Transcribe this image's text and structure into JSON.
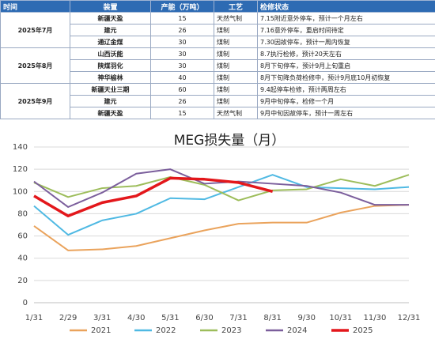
{
  "table": {
    "header": [
      "时间",
      "装置",
      "产能（万吨）",
      "工艺",
      "检修状态"
    ],
    "groups": [
      {
        "period": "2025年7月",
        "rows": [
          [
            "新疆天盈",
            15,
            "天然气制",
            "7.15附近意外停车，预计一个月左右"
          ],
          [
            "建元",
            26,
            "煤制",
            "7.16意外停车，重启时间待定"
          ],
          [
            "通辽金煤",
            30,
            "煤制",
            "7.30因故停车，预计一周内恢复"
          ]
        ]
      },
      {
        "period": "2025年8月",
        "rows": [
          [
            "山西沃能",
            30,
            "煤制",
            "8.7执行检修，预计20天左右"
          ],
          [
            "陕煤羽化",
            30,
            "煤制",
            "8月下旬停车，预计9月上旬重启"
          ],
          [
            "神华榆林",
            40,
            "煤制",
            "8月下旬降负荷检修中，预计9月底10月初恢复"
          ]
        ]
      },
      {
        "period": "2025年9月",
        "rows": [
          [
            "新疆天业三期",
            60,
            "煤制",
            "9.4起停车检修，预计两周左右"
          ],
          [
            "建元",
            26,
            "煤制",
            "9月中旬停车，检修一个月"
          ],
          [
            "新疆天盈",
            15,
            "天然气制",
            "9月中旬因故停车，预计一周左右"
          ]
        ]
      }
    ]
  },
  "chart_data": {
    "type": "line",
    "title": "MEG损失量（月）",
    "categories": [
      "1/31",
      "2/29",
      "3/31",
      "4/30",
      "5/31",
      "6/30",
      "7/31",
      "8/31",
      "9/30",
      "10/31",
      "11/30",
      "12/31"
    ],
    "series": [
      {
        "name": "2021",
        "color": "#eaa35c",
        "values": [
          69,
          47,
          48,
          51,
          58,
          65,
          71,
          72,
          72,
          81,
          87,
          88
        ]
      },
      {
        "name": "2022",
        "color": "#4fb9e3",
        "values": [
          87,
          61,
          74,
          80,
          94,
          93,
          104,
          115,
          104,
          103,
          102,
          104
        ]
      },
      {
        "name": "2023",
        "color": "#9dbd5b",
        "values": [
          108,
          95,
          103,
          105,
          113,
          106,
          92,
          101,
          102,
          111,
          105,
          115
        ]
      },
      {
        "name": "2024",
        "color": "#7b5e9c",
        "values": [
          109,
          86,
          99,
          116,
          120,
          107,
          109,
          107,
          105,
          99,
          88,
          88
        ]
      },
      {
        "name": "2025",
        "color": "#e3171b",
        "values": [
          96,
          78,
          90,
          96,
          112,
          111,
          108,
          100,
          null,
          null,
          null,
          null
        ]
      }
    ],
    "ylim": [
      0,
      140
    ],
    "yticks": [
      0,
      20,
      40,
      60,
      80,
      100,
      120,
      140
    ],
    "grid": true
  }
}
